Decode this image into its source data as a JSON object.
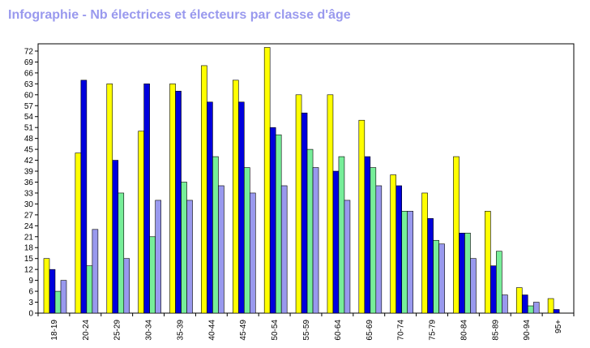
{
  "chart_data": {
    "type": "bar",
    "title": "Infographie - Nb électrices et électeurs par classe d'âge",
    "categories": [
      "18-19",
      "20-24",
      "25-29",
      "30-34",
      "35-39",
      "40-44",
      "45-49",
      "50-54",
      "55-59",
      "60-64",
      "65-69",
      "70-74",
      "75-79",
      "80-84",
      "85-89",
      "90-94",
      "95+"
    ],
    "series": [
      {
        "color": "#ffff00",
        "values": [
          15,
          44,
          63,
          50,
          63,
          68,
          64,
          73,
          60,
          60,
          53,
          38,
          33,
          43,
          28,
          7,
          4
        ]
      },
      {
        "color": "#0000dd",
        "values": [
          12,
          64,
          42,
          63,
          61,
          58,
          58,
          51,
          55,
          39,
          43,
          35,
          26,
          22,
          13,
          5,
          1
        ]
      },
      {
        "color": "#77ee99",
        "values": [
          6,
          13,
          33,
          21,
          36,
          43,
          40,
          49,
          45,
          43,
          40,
          28,
          20,
          22,
          17,
          2,
          0
        ]
      },
      {
        "color": "#9999ee",
        "values": [
          9,
          23,
          15,
          31,
          31,
          35,
          33,
          35,
          40,
          31,
          35,
          28,
          19,
          15,
          5,
          3,
          0
        ]
      }
    ],
    "ylim": [
      0,
      74
    ],
    "yticks": [
      0,
      3,
      6,
      9,
      12,
      15,
      18,
      21,
      24,
      27,
      30,
      33,
      36,
      39,
      42,
      45,
      48,
      51,
      54,
      57,
      60,
      63,
      66,
      69,
      72
    ],
    "grid": false,
    "legend": "none"
  }
}
